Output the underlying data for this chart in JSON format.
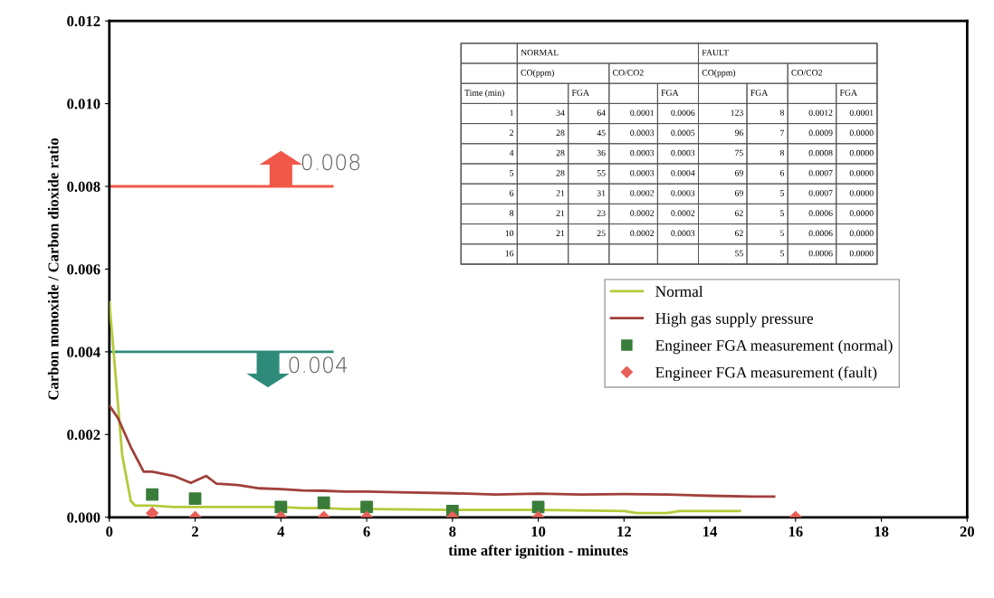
{
  "chart_data": {
    "type": "line",
    "xlabel": "time after ignition - minutes",
    "ylabel": "Carbon monoxide / Carbon dioxide ratio",
    "xlim": [
      0,
      20
    ],
    "xticks": [
      0,
      2,
      4,
      6,
      8,
      10,
      12,
      14,
      16,
      18,
      20
    ],
    "ylim": [
      0,
      0.012
    ],
    "yticks": [
      {
        "value": 0,
        "label": "0.000"
      },
      {
        "value": 0.002,
        "label": "0.002"
      },
      {
        "value": 0.004,
        "label": "0.004"
      },
      {
        "value": 0.006,
        "label": "0.006"
      },
      {
        "value": 0.008,
        "label": "0.008"
      },
      {
        "value": 0.01,
        "label": "0.010"
      },
      {
        "value": 0.012,
        "label": "0.012"
      }
    ],
    "grid": false,
    "legend": "right",
    "series": [
      {
        "name": "Normal",
        "color": "#b5c93a",
        "x": [
          0,
          0.1,
          0.3,
          0.5,
          0.6,
          1,
          1.5,
          2,
          3,
          4,
          4.5,
          5,
          5.5,
          6,
          8,
          10,
          12,
          12.3,
          13,
          13.3,
          14.7
        ],
        "values": [
          0.0052,
          0.004,
          0.0015,
          0.0004,
          0.00028,
          0.00028,
          0.00025,
          0.00025,
          0.00025,
          0.00025,
          0.00022,
          0.00022,
          0.0002,
          0.0002,
          0.00018,
          0.00018,
          0.00015,
          0.0001,
          0.0001,
          0.00015,
          0.00015
        ]
      },
      {
        "name": "High gas supply pressure",
        "color": "#a0403a",
        "x": [
          0,
          0.2,
          0.5,
          0.8,
          1,
          1.5,
          1.9,
          2.26,
          2.5,
          3,
          3.5,
          4,
          4.5,
          5,
          5.5,
          6,
          7,
          8,
          9,
          10,
          11,
          12,
          13,
          14,
          15,
          15.5
        ],
        "values": [
          0.0027,
          0.0024,
          0.0017,
          0.0011,
          0.0011,
          0.001,
          0.00083,
          0.001,
          0.00081,
          0.00078,
          0.0007,
          0.00068,
          0.00065,
          0.00064,
          0.00062,
          0.00062,
          0.0006,
          0.00058,
          0.00055,
          0.00057,
          0.00055,
          0.00056,
          0.00055,
          0.00052,
          0.0005,
          0.0005
        ]
      },
      {
        "name": "Engineer FGA measurement (normal)",
        "type": "scatter",
        "marker": "square",
        "color": "#3a7d3a",
        "x": [
          1,
          2,
          4,
          5,
          6,
          8,
          10
        ],
        "values": [
          0.00055,
          0.00045,
          0.00025,
          0.00035,
          0.00025,
          0.00015,
          0.00025
        ]
      },
      {
        "name": "Engineer FGA measurement (fault)",
        "type": "scatter",
        "marker": "diamond",
        "color": "#e8605a",
        "x": [
          1,
          2,
          4,
          5,
          6,
          8,
          10,
          16
        ],
        "values": [
          0.0001,
          0,
          0,
          0,
          0,
          0,
          0,
          0
        ]
      }
    ],
    "ref_lines": [
      {
        "axis": "y",
        "value": 0.008,
        "label": "0.008",
        "color": "#f0584a"
      },
      {
        "axis": "y",
        "value": 0.004,
        "label": "0.004",
        "color": "#2e8b7a"
      }
    ],
    "annotations": [
      "NORMAL",
      "FAULT",
      "CO(ppm)",
      "CO/CO2",
      "CO(ppm)",
      "CO/CO2",
      "Time (min)",
      null,
      "FGA",
      null,
      "FGA",
      null,
      "FGA",
      null,
      "FGA",
      "1",
      "34",
      "64",
      "0.0001",
      "0.0006",
      "123",
      "8",
      "0.0012",
      "0.0001",
      "2",
      "28",
      "45",
      "0.0003",
      "0.0005",
      "96",
      "7",
      "0.0009",
      "0.0000",
      "4",
      "28",
      "36",
      "0.0003",
      "0.0003",
      "75",
      "8",
      "0.0008",
      "0.0000",
      "5",
      "28",
      "55",
      "0.0003",
      "0.0004",
      "69",
      "6",
      "0.0007",
      "0.0000",
      "6",
      "21",
      "31",
      "0.0002",
      "0.0003",
      "69",
      "5",
      "0.0007",
      "0.0000",
      "8",
      "21",
      "23",
      "0.0002",
      "0.0002",
      "62",
      "5",
      "0.0006",
      "0.0000",
      "10",
      "21",
      "25",
      "0.0002",
      "0.0003",
      "62",
      "5",
      "0.0006",
      "0.0000",
      "16",
      null,
      null,
      null,
      null,
      "55",
      "5",
      "0.0006",
      "0.0000"
    ]
  }
}
